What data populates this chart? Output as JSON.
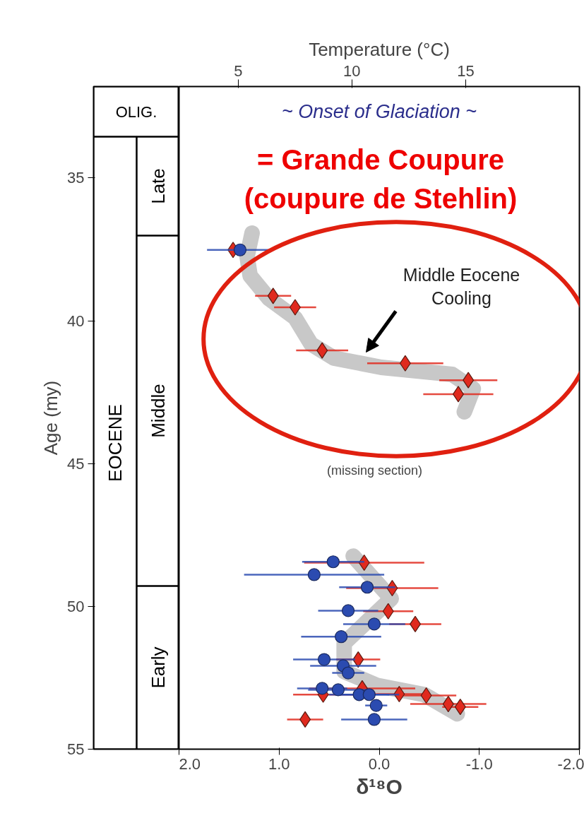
{
  "chart_data": {
    "type": "scatter",
    "xlabel": "δ¹⁸O",
    "ylabel": "Age (my)",
    "x2label": "Temperature (°C)",
    "xlim": [
      2.0,
      -2.0
    ],
    "xticks": [
      {
        "value": 2,
        "label": "2.0"
      },
      {
        "value": 1,
        "label": "1.0"
      },
      {
        "value": 0,
        "label": "0.0"
      },
      {
        "value": -1,
        "label": "-1.0"
      },
      {
        "value": -2,
        "label": "-2.0"
      }
    ],
    "x2lim": [
      2.4,
      20.0
    ],
    "x2ticks": [
      5,
      10,
      15
    ],
    "ylim": [
      55,
      31.8
    ],
    "yticks": [
      35,
      40,
      45,
      50,
      55
    ],
    "grid": false,
    "series": [
      {
        "type": "line",
        "color": "#c8c8c8",
        "x": [
          1.27,
          1.32,
          1.29,
          1.1,
          0.84,
          0.68,
          0.45,
          -0.02,
          -0.73,
          -0.94,
          -0.85,
          null,
          0.26,
          -0.12,
          0.35,
          0.35,
          0.02,
          -0.45,
          -0.78
        ],
        "values": [
          36.93,
          37.75,
          38.42,
          39.23,
          39.9,
          40.82,
          41.31,
          41.63,
          41.88,
          42.38,
          43.19,
          null,
          48.24,
          49.73,
          51.29,
          52.28,
          52.77,
          53.09,
          53.76
        ]
      },
      {
        "marker": "diamond",
        "color": "#e02a1e",
        "x": [
          1.46,
          1.06,
          0.84,
          0.57,
          -0.26,
          -0.89,
          -0.79,
          0.15,
          -0.13,
          -0.09,
          -0.36,
          0.21,
          0.17,
          0.56,
          -0.2,
          -0.47,
          -0.69,
          -0.81,
          0.74
        ],
        "values": [
          37.52,
          39.13,
          39.53,
          41.04,
          41.49,
          42.08,
          42.57,
          48.47,
          49.36,
          50.17,
          50.62,
          51.86,
          52.87,
          53.09,
          53.07,
          53.12,
          53.42,
          53.52,
          53.96
        ],
        "xerrors": [
          null,
          0.18,
          0.21,
          0.26,
          0.38,
          0.29,
          0.35,
          0.6,
          0.46,
          0.25,
          0.26,
          0.22,
          0.53,
          0.3,
          0.3,
          0.3,
          0.38,
          0.18,
          0.18
        ]
      },
      {
        "marker": "circle",
        "color": "#2b4bb0",
        "x": [
          1.39,
          0.46,
          0.65,
          0.12,
          0.31,
          0.05,
          0.38,
          0.55,
          0.36,
          0.31,
          0.57,
          0.41,
          0.2,
          0.1,
          0.03,
          0.05
        ],
        "values": [
          37.52,
          48.44,
          48.89,
          49.33,
          50.15,
          50.62,
          51.06,
          51.86,
          52.08,
          52.33,
          52.87,
          52.92,
          53.09,
          53.09,
          53.47,
          53.96
        ],
        "xerrors": [
          0.33,
          0.31,
          0.7,
          0.28,
          0.3,
          0.31,
          0.4,
          0.31,
          0.33,
          0.16,
          0.25,
          0.3,
          0.3,
          0.3,
          0.11,
          0.33
        ]
      }
    ],
    "annotations": [
      "~ Onset of Glaciation ~",
      "= Grande Coupure",
      "(coupure de Stehlin)",
      "Middle Eocene Cooling",
      "(missing section)",
      "OLIG.",
      "EOCENE",
      "Late",
      "Middle",
      "Early"
    ]
  }
}
